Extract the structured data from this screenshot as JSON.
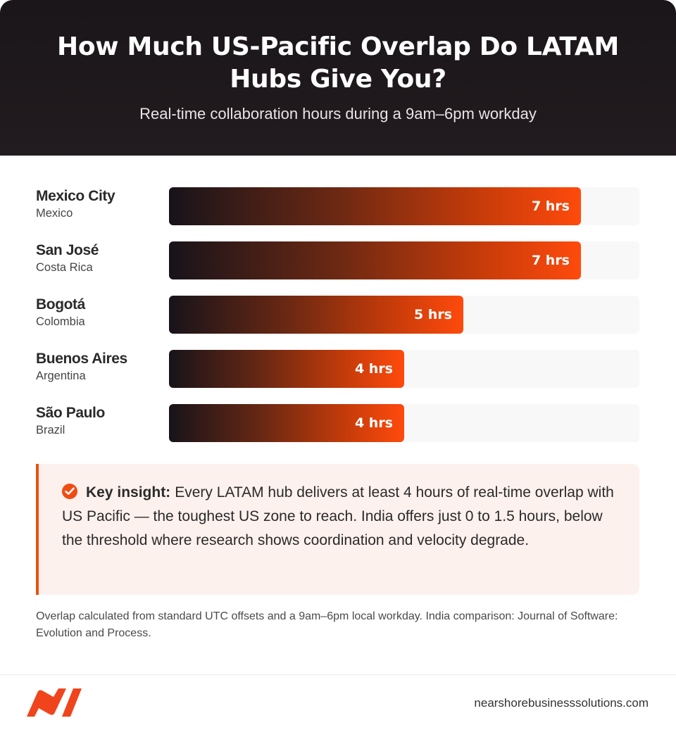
{
  "header": {
    "title": "How Much US-Pacific Overlap Do LATAM Hubs Give You?",
    "subtitle": "Real-time collaboration hours during a 9am–6pm workday"
  },
  "chart_data": {
    "type": "bar",
    "orientation": "horizontal",
    "title": "How Much US-Pacific Overlap Do LATAM Hubs Give You?",
    "subtitle": "Real-time collaboration hours during a 9am–6pm workday",
    "categories": [
      {
        "city": "Mexico City",
        "country": "Mexico",
        "value": 7,
        "label": "7 hrs"
      },
      {
        "city": "San José",
        "country": "Costa Rica",
        "value": 7,
        "label": "7 hrs"
      },
      {
        "city": "Bogotá",
        "country": "Colombia",
        "value": 5,
        "label": "5 hrs"
      },
      {
        "city": "Buenos Aires",
        "country": "Argentina",
        "value": 4,
        "label": "4 hrs"
      },
      {
        "city": "São Paulo",
        "country": "Brazil",
        "value": 4,
        "label": "4 hrs"
      }
    ],
    "xlim": [
      0,
      8
    ],
    "bar_gradient": [
      "#17131a",
      "#ff4a0c"
    ],
    "grid": false,
    "legend": "none"
  },
  "insight": {
    "icon": "check-circle-icon",
    "key": "Key insight:",
    "text": "Every LATAM hub delivers at least 4 hours of real-time overlap with US Pacific — the toughest US zone to reach. India offers just 0 to 1.5 hours, below the threshold where research shows coordination and velocity degrade."
  },
  "footnote": "Overlap calculated from standard UTC offsets and a 9am–6pm local workday. India comparison: Journal of Software: Evolution and Process.",
  "footer": {
    "logo": "brand-logo-icon",
    "site": "nearshorebusinesssolutions.com"
  },
  "colors": {
    "accent": "#ef4c13",
    "header_bg": "#1a1619",
    "insight_bg": "#fdf1ee"
  }
}
